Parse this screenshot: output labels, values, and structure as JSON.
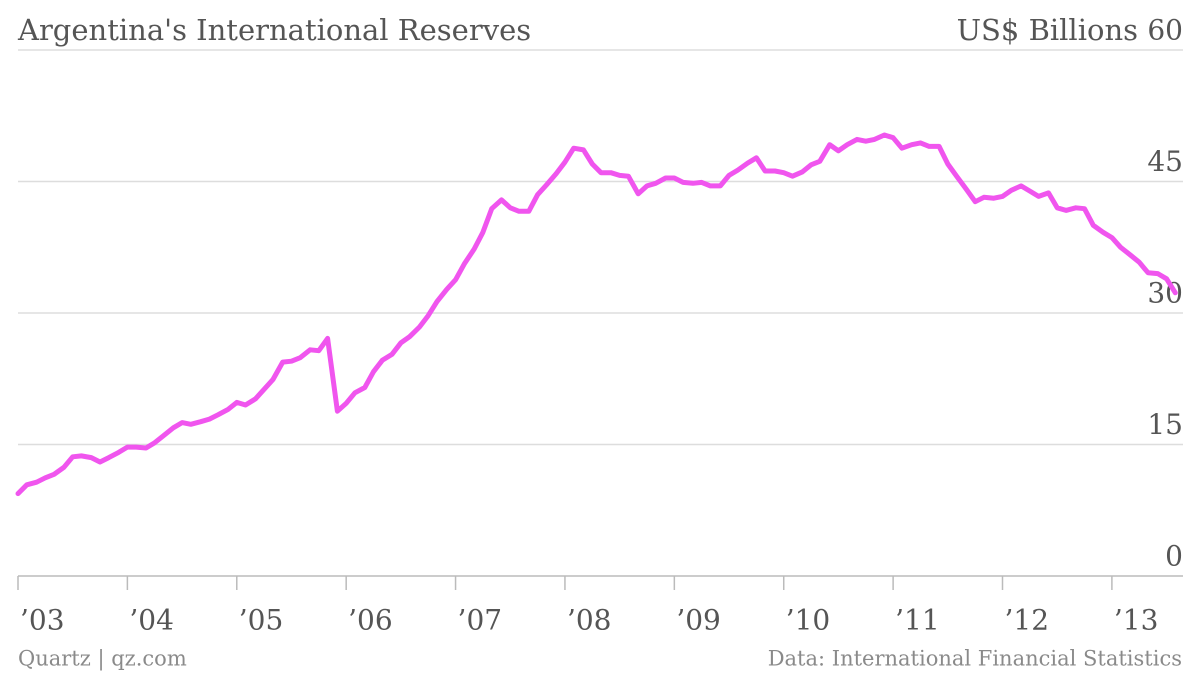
{
  "chart_data": {
    "type": "line",
    "title": "Argentina's International Reserves",
    "y_label": "US$ Billions",
    "source": "Data: International Financial Statistics",
    "credit": "Quartz | qz.com",
    "x": [
      2003,
      2003.08,
      2003.17,
      2003.25,
      2003.33,
      2003.42,
      2003.5,
      2003.58,
      2003.67,
      2003.75,
      2003.83,
      2003.92,
      2004,
      2004.08,
      2004.17,
      2004.25,
      2004.33,
      2004.42,
      2004.5,
      2004.58,
      2004.67,
      2004.75,
      2004.83,
      2004.92,
      2005,
      2005.08,
      2005.17,
      2005.25,
      2005.33,
      2005.42,
      2005.5,
      2005.58,
      2005.67,
      2005.75,
      2005.83,
      2005.92,
      2006,
      2006.08,
      2006.17,
      2006.25,
      2006.33,
      2006.42,
      2006.5,
      2006.58,
      2006.67,
      2006.75,
      2006.83,
      2006.92,
      2007,
      2007.08,
      2007.17,
      2007.25,
      2007.33,
      2007.42,
      2007.5,
      2007.58,
      2007.67,
      2007.75,
      2007.83,
      2007.92,
      2008,
      2008.08,
      2008.17,
      2008.25,
      2008.33,
      2008.42,
      2008.5,
      2008.58,
      2008.67,
      2008.75,
      2008.83,
      2008.92,
      2009,
      2009.08,
      2009.17,
      2009.25,
      2009.33,
      2009.42,
      2009.5,
      2009.58,
      2009.67,
      2009.75,
      2009.83,
      2009.92,
      2010,
      2010.08,
      2010.17,
      2010.25,
      2010.33,
      2010.42,
      2010.5,
      2010.58,
      2010.67,
      2010.75,
      2010.83,
      2010.92,
      2011,
      2011.08,
      2011.17,
      2011.25,
      2011.33,
      2011.42,
      2011.5,
      2011.58,
      2011.67,
      2011.75,
      2011.83,
      2011.92,
      2012,
      2012.08,
      2012.17,
      2012.25,
      2012.33,
      2012.42,
      2012.5,
      2012.58,
      2012.67,
      2012.75,
      2012.83,
      2012.92,
      2013,
      2013.08,
      2013.17,
      2013.25,
      2013.33,
      2013.42,
      2013.5,
      2013.58
    ],
    "series": [
      {
        "name": "International Reserves",
        "color": "#f055ee",
        "values": [
          9.4,
          10.4,
          10.7,
          11.2,
          11.6,
          12.4,
          13.6,
          13.7,
          13.5,
          13.0,
          13.5,
          14.1,
          14.7,
          14.7,
          14.6,
          15.2,
          16.0,
          16.9,
          17.5,
          17.3,
          17.6,
          17.9,
          18.4,
          19.0,
          19.8,
          19.5,
          20.2,
          21.3,
          22.4,
          24.4,
          24.5,
          24.9,
          25.8,
          25.7,
          27.1,
          18.8,
          19.7,
          20.9,
          21.5,
          23.3,
          24.6,
          25.3,
          26.6,
          27.3,
          28.4,
          29.7,
          31.3,
          32.7,
          33.8,
          35.6,
          37.3,
          39.2,
          41.9,
          42.9,
          42.0,
          41.6,
          41.6,
          43.5,
          44.6,
          45.9,
          47.2,
          48.8,
          48.6,
          47.0,
          46.0,
          46.0,
          45.7,
          45.6,
          43.6,
          44.5,
          44.8,
          45.4,
          45.4,
          44.9,
          44.8,
          44.9,
          44.5,
          44.5,
          45.7,
          46.3,
          47.1,
          47.7,
          46.2,
          46.2,
          46.0,
          45.6,
          46.1,
          46.9,
          47.3,
          49.2,
          48.5,
          49.2,
          49.8,
          49.6,
          49.8,
          50.3,
          50.0,
          48.8,
          49.2,
          49.4,
          49.0,
          49.0,
          47.0,
          45.6,
          44.1,
          42.7,
          43.2,
          43.1,
          43.3,
          44.0,
          44.5,
          43.9,
          43.3,
          43.7,
          42.0,
          41.7,
          42.0,
          41.9,
          40.0,
          39.2,
          38.6,
          37.5,
          36.6,
          35.8,
          34.6,
          34.5,
          33.9,
          32.3
        ]
      }
    ],
    "xlim": [
      2003,
      2013.65
    ],
    "xticks": [
      {
        "value": 2003,
        "label": "’03"
      },
      {
        "value": 2004,
        "label": "’04"
      },
      {
        "value": 2005,
        "label": "’05"
      },
      {
        "value": 2006,
        "label": "’06"
      },
      {
        "value": 2007,
        "label": "’07"
      },
      {
        "value": 2008,
        "label": "’08"
      },
      {
        "value": 2009,
        "label": "’09"
      },
      {
        "value": 2010,
        "label": "’10"
      },
      {
        "value": 2011,
        "label": "’11"
      },
      {
        "value": 2012,
        "label": "’12"
      },
      {
        "value": 2013,
        "label": "’13"
      }
    ],
    "ylim": [
      0,
      60
    ],
    "yticks": [
      0,
      15,
      30,
      45,
      60
    ],
    "grid": true
  }
}
